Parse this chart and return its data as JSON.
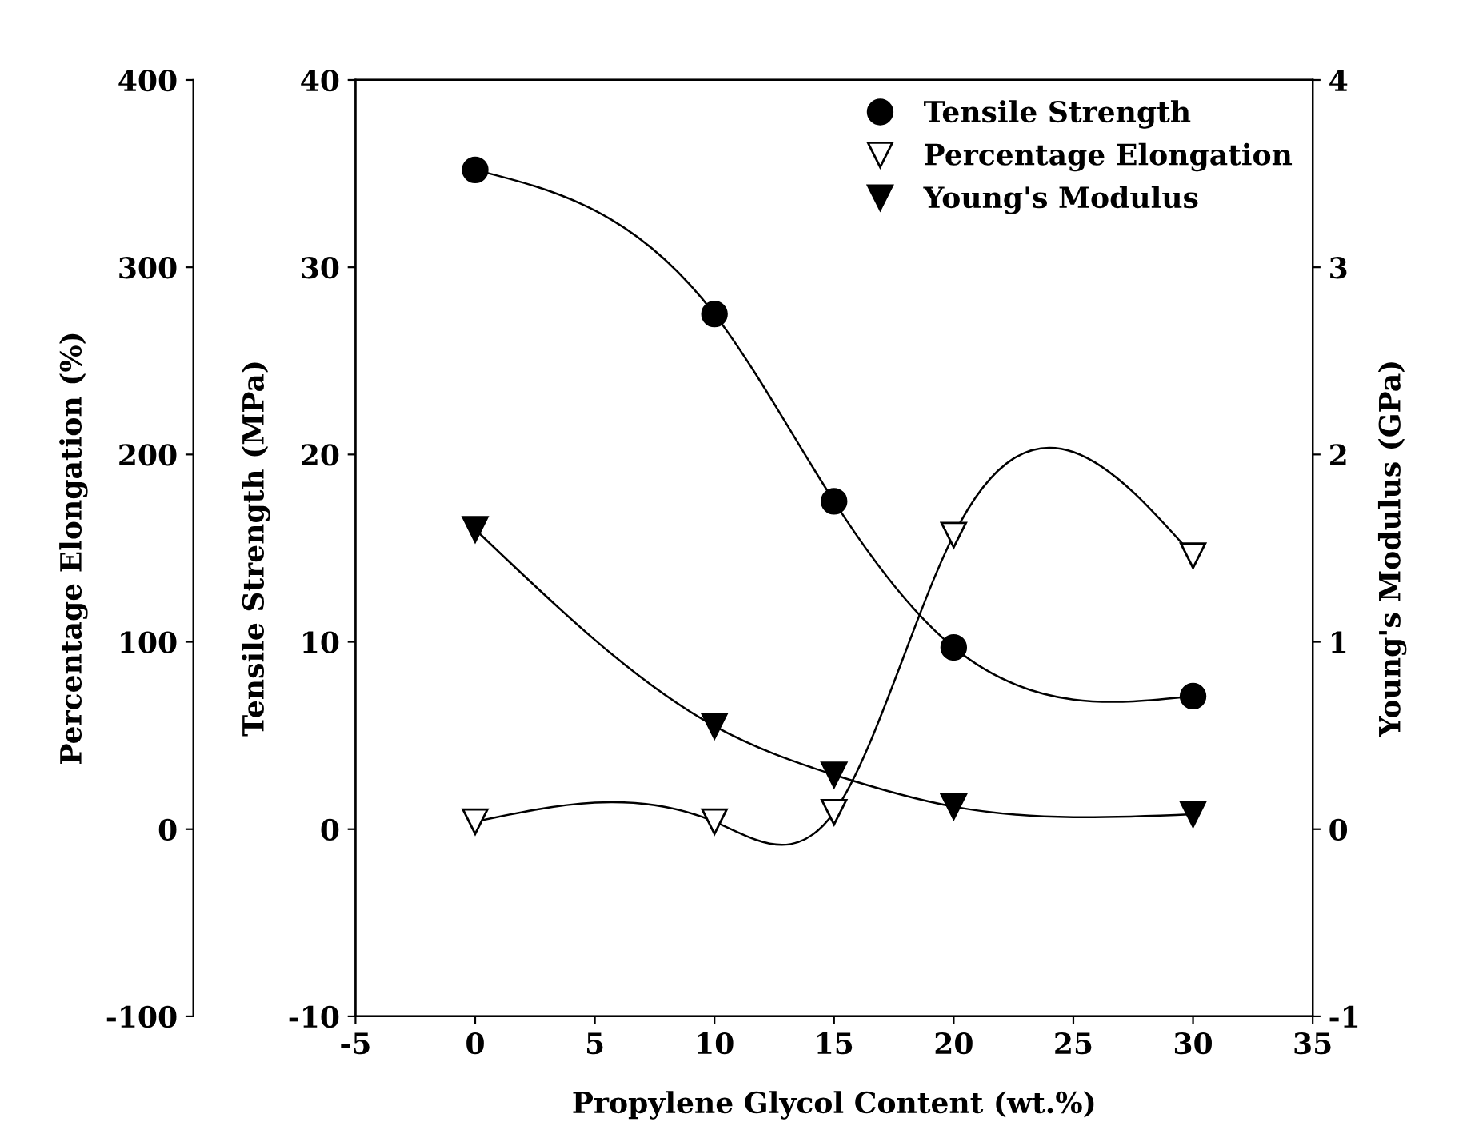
{
  "chart_data": {
    "type": "line",
    "xlabel": "Propylene Glycol Content (wt.%)",
    "ylabel": "Tensile Strength (MPa)",
    "y2label": "Young's Modulus (GPa)",
    "y3label": "Percentage Elongation (%)",
    "x": [
      0,
      10,
      15,
      20,
      30
    ],
    "series": [
      {
        "name": "Tensile Strength",
        "color": "#000000",
        "marker": "circle",
        "values": [
          35.2,
          27.5,
          17.5,
          9.7,
          7.1
        ]
      },
      {
        "name": "Percentage Elongation",
        "color": "#ffffff",
        "marker": "triangle",
        "axis": "y3",
        "values": [
          4,
          4,
          9,
          157,
          146
        ]
      },
      {
        "name": "Young's Modulus",
        "color": "#000000",
        "marker": "triangle",
        "axis": "y2",
        "values": [
          1.6,
          0.55,
          0.29,
          0.12,
          0.08
        ]
      }
    ],
    "xlim": [
      -5,
      35
    ],
    "xticks": [
      -5,
      0,
      5,
      10,
      15,
      20,
      25,
      30,
      35
    ],
    "ylim": [
      -10,
      40
    ],
    "yticks": [
      -10,
      0,
      10,
      20,
      30,
      40
    ],
    "y2lim": [
      -1,
      4
    ],
    "y2ticks": [
      -1,
      0,
      1,
      2,
      3,
      4
    ],
    "y3lim": [
      -100,
      400
    ],
    "y3ticks": [
      -100,
      0,
      100,
      200,
      300,
      400
    ],
    "legend": "top right",
    "grid": false
  }
}
